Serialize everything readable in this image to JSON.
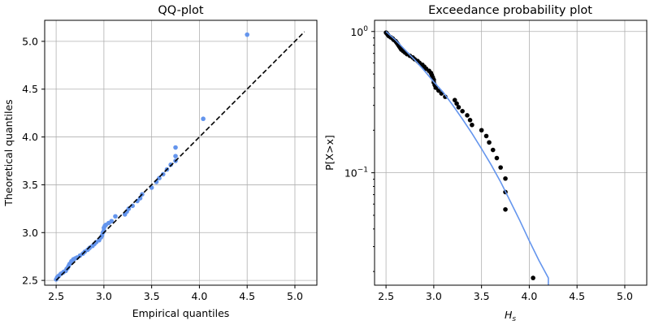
{
  "chart_data": [
    {
      "type": "scatter",
      "title": "QQ-plot",
      "xlabel": "Empirical quantiles",
      "ylabel": "Theoretical quantiles",
      "xlim": [
        2.38,
        5.23
      ],
      "ylim": [
        2.45,
        5.22
      ],
      "xticks": [
        "2.5",
        "3.0",
        "3.5",
        "4.0",
        "4.5",
        "5.0"
      ],
      "yticks": [
        "2.5",
        "3.0",
        "3.5",
        "4.0",
        "4.5",
        "5.0"
      ],
      "grid": true,
      "colors": {
        "points": "#6495ed",
        "reference": "#000000"
      },
      "series": [
        {
          "style": "points",
          "x": [
            2.5,
            2.51,
            2.52,
            2.53,
            2.55,
            2.57,
            2.58,
            2.6,
            2.61,
            2.62,
            2.63,
            2.64,
            2.65,
            2.66,
            2.68,
            2.7,
            2.72,
            2.75,
            2.78,
            2.8,
            2.83,
            2.85,
            2.88,
            2.9,
            2.92,
            2.95,
            2.97,
            2.98,
            2.99,
            3.0,
            3.0,
            3.01,
            3.02,
            3.05,
            3.08,
            3.12,
            3.22,
            3.24,
            3.26,
            3.3,
            3.35,
            3.38,
            3.4,
            3.5,
            3.55,
            3.58,
            3.62,
            3.66,
            3.7,
            3.75,
            3.75,
            3.75,
            4.04,
            4.5
          ],
          "y": [
            2.51,
            2.53,
            2.54,
            2.55,
            2.57,
            2.58,
            2.59,
            2.6,
            2.62,
            2.63,
            2.65,
            2.67,
            2.68,
            2.7,
            2.72,
            2.73,
            2.74,
            2.76,
            2.78,
            2.8,
            2.82,
            2.84,
            2.86,
            2.88,
            2.9,
            2.92,
            2.95,
            2.97,
            3.0,
            3.02,
            3.05,
            3.07,
            3.08,
            3.1,
            3.12,
            3.17,
            3.19,
            3.22,
            3.25,
            3.28,
            3.33,
            3.36,
            3.4,
            3.47,
            3.53,
            3.57,
            3.61,
            3.66,
            3.71,
            3.75,
            3.8,
            3.89,
            4.19,
            5.07
          ]
        },
        {
          "style": "dashed-line",
          "x": [
            2.5,
            5.1
          ],
          "y": [
            2.5,
            5.1
          ]
        }
      ]
    },
    {
      "type": "scatter",
      "title": "Exceedance probability plot",
      "xlabel": "H",
      "xlabel_sub": "s",
      "ylabel": "P[X>x]",
      "yscale": "log",
      "xlim": [
        2.38,
        5.23
      ],
      "ylim": [
        0.016,
        1.2
      ],
      "xticks": [
        "2.5",
        "3.0",
        "3.5",
        "4.0",
        "4.5",
        "5.0"
      ],
      "yticks": [
        {
          "value": 1,
          "base": "10",
          "exp": "0"
        },
        {
          "value": 0.1,
          "base": "10",
          "exp": "−1"
        }
      ],
      "grid": true,
      "colors": {
        "points": "#000000",
        "curve": "#6495ed"
      },
      "series": [
        {
          "style": "points",
          "x": [
            2.5,
            2.51,
            2.52,
            2.53,
            2.55,
            2.57,
            2.58,
            2.6,
            2.61,
            2.62,
            2.63,
            2.64,
            2.65,
            2.66,
            2.68,
            2.7,
            2.72,
            2.75,
            2.78,
            2.8,
            2.83,
            2.85,
            2.88,
            2.9,
            2.92,
            2.95,
            2.97,
            2.98,
            2.99,
            3.0,
            3.0,
            3.01,
            3.02,
            3.05,
            3.08,
            3.12,
            3.22,
            3.24,
            3.26,
            3.3,
            3.35,
            3.38,
            3.4,
            3.5,
            3.55,
            3.58,
            3.62,
            3.66,
            3.7,
            3.75,
            3.75,
            3.75,
            4.04
          ],
          "y": [
            0.982,
            0.964,
            0.945,
            0.927,
            0.909,
            0.891,
            0.873,
            0.855,
            0.836,
            0.818,
            0.8,
            0.782,
            0.764,
            0.745,
            0.727,
            0.709,
            0.691,
            0.673,
            0.655,
            0.636,
            0.618,
            0.6,
            0.582,
            0.564,
            0.545,
            0.527,
            0.509,
            0.491,
            0.473,
            0.455,
            0.436,
            0.418,
            0.4,
            0.382,
            0.364,
            0.345,
            0.327,
            0.309,
            0.291,
            0.273,
            0.255,
            0.236,
            0.218,
            0.2,
            0.182,
            0.164,
            0.145,
            0.127,
            0.109,
            0.091,
            0.073,
            0.055,
            0.018
          ]
        },
        {
          "style": "line",
          "x": [
            2.5,
            2.6,
            2.7,
            2.8,
            2.9,
            3.0,
            3.1,
            3.2,
            3.3,
            3.4,
            3.5,
            3.6,
            3.7,
            3.8,
            3.9,
            4.0,
            4.1,
            4.2,
            4.2
          ],
          "y": [
            1.0,
            0.87,
            0.74,
            0.63,
            0.53,
            0.44,
            0.37,
            0.3,
            0.24,
            0.19,
            0.148,
            0.114,
            0.086,
            0.063,
            0.046,
            0.033,
            0.024,
            0.018,
            0.016
          ]
        }
      ]
    }
  ]
}
